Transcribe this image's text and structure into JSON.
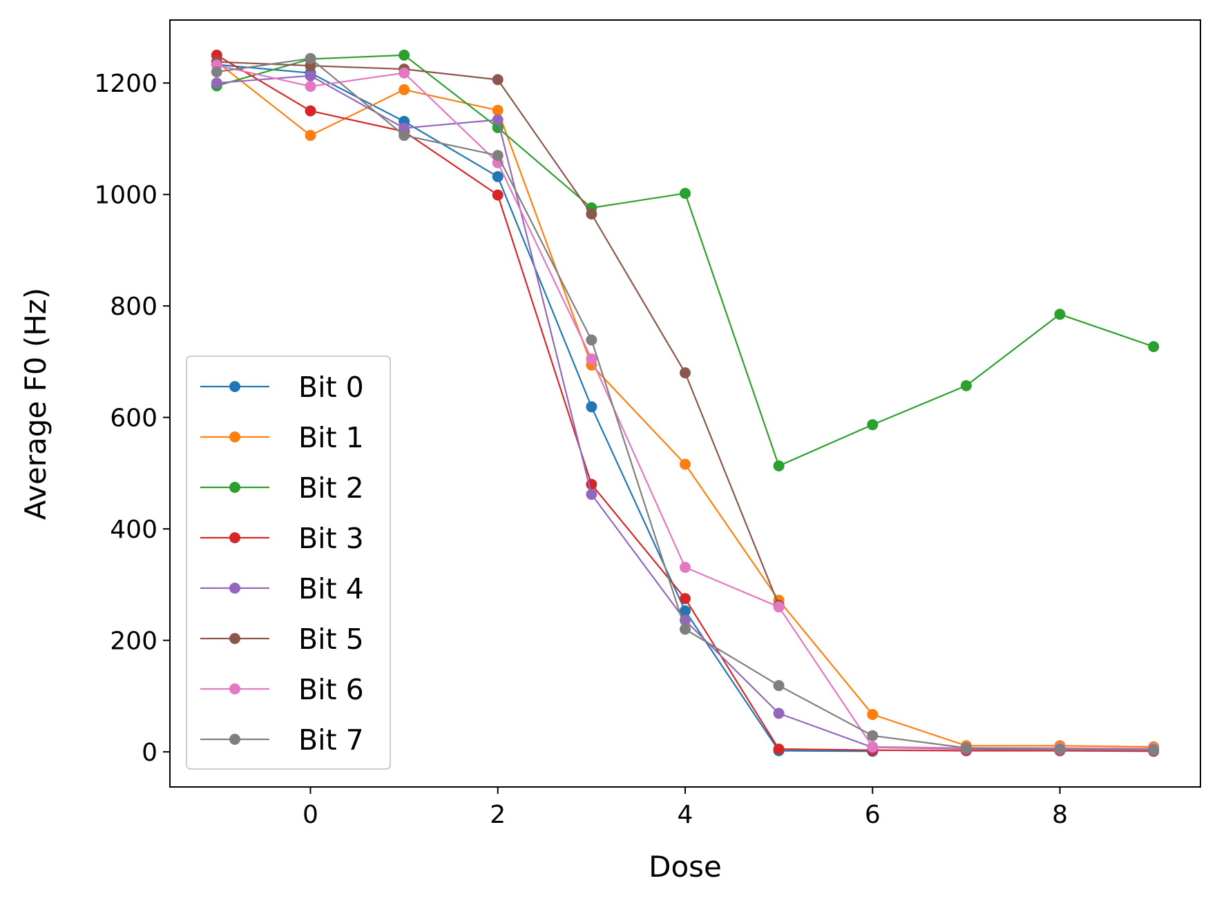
{
  "chart_data": {
    "type": "line",
    "title": "",
    "xlabel": "Dose",
    "ylabel": "Average F0 (Hz)",
    "xlim": [
      -1.5,
      9.5
    ],
    "ylim": [
      -63,
      1313
    ],
    "xticks": [
      0,
      2,
      4,
      6,
      8
    ],
    "yticks": [
      0,
      200,
      400,
      600,
      800,
      1000,
      1200
    ],
    "grid": false,
    "legend_position": "lower-left",
    "x": [
      -1,
      0,
      1,
      2,
      3,
      4,
      5,
      6,
      7,
      8,
      9
    ],
    "series": [
      {
        "name": "Bit 0",
        "color": "#1f77b4",
        "x": [
          -1,
          0,
          1,
          2,
          3,
          4,
          5,
          6
        ],
        "values": [
          1233,
          1218,
          1131,
          1032,
          619,
          253,
          2,
          1
        ]
      },
      {
        "name": "Bit 1",
        "color": "#ff7f0e",
        "x": [
          -1,
          0,
          1,
          2,
          3,
          4,
          5,
          6,
          7,
          8,
          9
        ],
        "values": [
          1238,
          1106,
          1188,
          1151,
          694,
          516,
          272,
          67,
          11,
          11,
          9
        ]
      },
      {
        "name": "Bit 2",
        "color": "#2ca02c",
        "x": [
          -1,
          0,
          1,
          2,
          3,
          4,
          5,
          6,
          7,
          8,
          9
        ],
        "values": [
          1195,
          1243,
          1250,
          1120,
          976,
          1002,
          513,
          587,
          657,
          785,
          727
        ]
      },
      {
        "name": "Bit 3",
        "color": "#d62728",
        "x": [
          -1,
          0,
          1,
          2,
          3,
          4,
          5,
          6,
          7,
          8,
          9
        ],
        "values": [
          1250,
          1150,
          1113,
          999,
          480,
          275,
          5,
          3,
          2,
          2,
          1
        ]
      },
      {
        "name": "Bit 4",
        "color": "#9467bd",
        "x": [
          -1,
          0,
          1,
          2,
          3,
          4,
          5,
          6,
          7,
          8,
          9
        ],
        "values": [
          1200,
          1213,
          1119,
          1134,
          462,
          236,
          69,
          8,
          5,
          4,
          3
        ]
      },
      {
        "name": "Bit 5",
        "color": "#8c564b",
        "x": [
          -1,
          0,
          1,
          2,
          3,
          4,
          5
        ],
        "values": [
          1238,
          1231,
          1225,
          1206,
          965,
          680,
          263
        ]
      },
      {
        "name": "Bit 6",
        "color": "#e377c2",
        "x": [
          -1,
          0,
          1,
          2,
          3,
          4,
          5,
          6,
          7,
          8,
          9
        ],
        "values": [
          1232,
          1194,
          1218,
          1057,
          705,
          331,
          260,
          9,
          7,
          7,
          6
        ]
      },
      {
        "name": "Bit 7",
        "color": "#7f7f7f",
        "x": [
          -1,
          0,
          1,
          2,
          3,
          4,
          5,
          6,
          7,
          8,
          9
        ],
        "values": [
          1220,
          1244,
          1106,
          1070,
          739,
          220,
          119,
          29,
          7,
          5,
          4
        ]
      }
    ]
  }
}
